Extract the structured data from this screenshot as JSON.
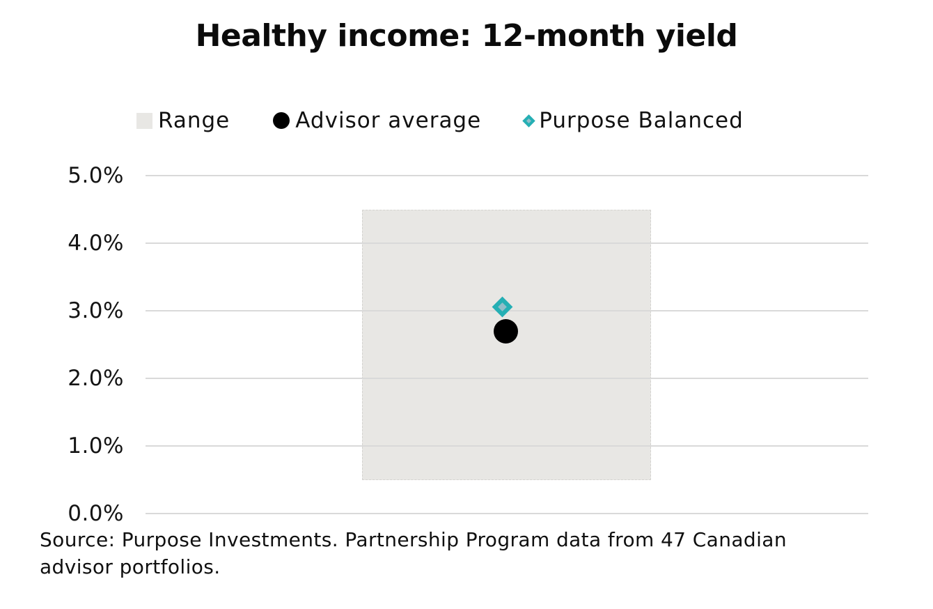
{
  "title": "Healthy income: 12-month yield",
  "legend": [
    {
      "label": "Range",
      "marker": "square",
      "fill": "#e8e7e4"
    },
    {
      "label": "Advisor average",
      "marker": "circle",
      "fill": "#000000"
    },
    {
      "label": "Purpose Balanced",
      "marker": "diamond",
      "fill": "#92bec9",
      "border": "#25afb4"
    }
  ],
  "y_axis": {
    "ticks": [
      "5.0%",
      "4.0%",
      "3.0%",
      "2.0%",
      "1.0%",
      "0.0%"
    ]
  },
  "source": {
    "text": "Source: Purpose Investments. Partnership Program data from 47 Canadian advisor portfolios."
  },
  "colors": {
    "gridline": "#d9d9d9",
    "range_fill": "#e8e7e4",
    "advisor_dot": "#000000",
    "diamond_border": "#25afb4",
    "diamond_fill": "#92bec9",
    "text": "#0e0e0e"
  },
  "chart_data": {
    "type": "bar",
    "subtype": "range-with-points",
    "title": "Healthy income: 12-month yield",
    "categories": [
      "Healthy income"
    ],
    "series": [
      {
        "name": "Range",
        "kind": "floating-bar",
        "low": 0.5,
        "high": 4.5,
        "unit": "%"
      },
      {
        "name": "Advisor average",
        "kind": "point-circle",
        "value": 2.7,
        "unit": "%"
      },
      {
        "name": "Purpose Balanced",
        "kind": "point-diamond",
        "value": 3.0,
        "unit": "%"
      }
    ],
    "xlabel": "",
    "ylabel": "",
    "ylim": [
      0,
      5
    ],
    "ytick_step": 1.0,
    "ytick_format": "0.0%",
    "grid": true,
    "legend_position": "top",
    "annotations": [
      "Source: Purpose Investments. Partnership Program data from 47 Canadian advisor portfolios."
    ]
  }
}
